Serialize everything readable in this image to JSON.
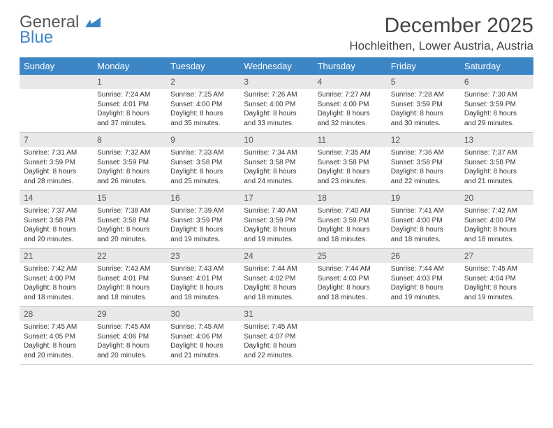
{
  "logo": {
    "general": "General",
    "blue": "Blue"
  },
  "title": {
    "month": "December 2025",
    "location": "Hochleithen, Lower Austria, Austria"
  },
  "colors": {
    "header_blue": "#3d86c6",
    "daynum_bg": "#e8e8e8"
  },
  "weekdays": [
    "Sunday",
    "Monday",
    "Tuesday",
    "Wednesday",
    "Thursday",
    "Friday",
    "Saturday"
  ],
  "weeks": [
    [
      {
        "day": "",
        "sunrise": "",
        "sunset": "",
        "daylight": ""
      },
      {
        "day": "1",
        "sunrise": "Sunrise: 7:24 AM",
        "sunset": "Sunset: 4:01 PM",
        "daylight": "Daylight: 8 hours and 37 minutes."
      },
      {
        "day": "2",
        "sunrise": "Sunrise: 7:25 AM",
        "sunset": "Sunset: 4:00 PM",
        "daylight": "Daylight: 8 hours and 35 minutes."
      },
      {
        "day": "3",
        "sunrise": "Sunrise: 7:26 AM",
        "sunset": "Sunset: 4:00 PM",
        "daylight": "Daylight: 8 hours and 33 minutes."
      },
      {
        "day": "4",
        "sunrise": "Sunrise: 7:27 AM",
        "sunset": "Sunset: 4:00 PM",
        "daylight": "Daylight: 8 hours and 32 minutes."
      },
      {
        "day": "5",
        "sunrise": "Sunrise: 7:28 AM",
        "sunset": "Sunset: 3:59 PM",
        "daylight": "Daylight: 8 hours and 30 minutes."
      },
      {
        "day": "6",
        "sunrise": "Sunrise: 7:30 AM",
        "sunset": "Sunset: 3:59 PM",
        "daylight": "Daylight: 8 hours and 29 minutes."
      }
    ],
    [
      {
        "day": "7",
        "sunrise": "Sunrise: 7:31 AM",
        "sunset": "Sunset: 3:59 PM",
        "daylight": "Daylight: 8 hours and 28 minutes."
      },
      {
        "day": "8",
        "sunrise": "Sunrise: 7:32 AM",
        "sunset": "Sunset: 3:59 PM",
        "daylight": "Daylight: 8 hours and 26 minutes."
      },
      {
        "day": "9",
        "sunrise": "Sunrise: 7:33 AM",
        "sunset": "Sunset: 3:58 PM",
        "daylight": "Daylight: 8 hours and 25 minutes."
      },
      {
        "day": "10",
        "sunrise": "Sunrise: 7:34 AM",
        "sunset": "Sunset: 3:58 PM",
        "daylight": "Daylight: 8 hours and 24 minutes."
      },
      {
        "day": "11",
        "sunrise": "Sunrise: 7:35 AM",
        "sunset": "Sunset: 3:58 PM",
        "daylight": "Daylight: 8 hours and 23 minutes."
      },
      {
        "day": "12",
        "sunrise": "Sunrise: 7:36 AM",
        "sunset": "Sunset: 3:58 PM",
        "daylight": "Daylight: 8 hours and 22 minutes."
      },
      {
        "day": "13",
        "sunrise": "Sunrise: 7:37 AM",
        "sunset": "Sunset: 3:58 PM",
        "daylight": "Daylight: 8 hours and 21 minutes."
      }
    ],
    [
      {
        "day": "14",
        "sunrise": "Sunrise: 7:37 AM",
        "sunset": "Sunset: 3:58 PM",
        "daylight": "Daylight: 8 hours and 20 minutes."
      },
      {
        "day": "15",
        "sunrise": "Sunrise: 7:38 AM",
        "sunset": "Sunset: 3:58 PM",
        "daylight": "Daylight: 8 hours and 20 minutes."
      },
      {
        "day": "16",
        "sunrise": "Sunrise: 7:39 AM",
        "sunset": "Sunset: 3:59 PM",
        "daylight": "Daylight: 8 hours and 19 minutes."
      },
      {
        "day": "17",
        "sunrise": "Sunrise: 7:40 AM",
        "sunset": "Sunset: 3:59 PM",
        "daylight": "Daylight: 8 hours and 19 minutes."
      },
      {
        "day": "18",
        "sunrise": "Sunrise: 7:40 AM",
        "sunset": "Sunset: 3:59 PM",
        "daylight": "Daylight: 8 hours and 18 minutes."
      },
      {
        "day": "19",
        "sunrise": "Sunrise: 7:41 AM",
        "sunset": "Sunset: 4:00 PM",
        "daylight": "Daylight: 8 hours and 18 minutes."
      },
      {
        "day": "20",
        "sunrise": "Sunrise: 7:42 AM",
        "sunset": "Sunset: 4:00 PM",
        "daylight": "Daylight: 8 hours and 18 minutes."
      }
    ],
    [
      {
        "day": "21",
        "sunrise": "Sunrise: 7:42 AM",
        "sunset": "Sunset: 4:00 PM",
        "daylight": "Daylight: 8 hours and 18 minutes."
      },
      {
        "day": "22",
        "sunrise": "Sunrise: 7:43 AM",
        "sunset": "Sunset: 4:01 PM",
        "daylight": "Daylight: 8 hours and 18 minutes."
      },
      {
        "day": "23",
        "sunrise": "Sunrise: 7:43 AM",
        "sunset": "Sunset: 4:01 PM",
        "daylight": "Daylight: 8 hours and 18 minutes."
      },
      {
        "day": "24",
        "sunrise": "Sunrise: 7:44 AM",
        "sunset": "Sunset: 4:02 PM",
        "daylight": "Daylight: 8 hours and 18 minutes."
      },
      {
        "day": "25",
        "sunrise": "Sunrise: 7:44 AM",
        "sunset": "Sunset: 4:03 PM",
        "daylight": "Daylight: 8 hours and 18 minutes."
      },
      {
        "day": "26",
        "sunrise": "Sunrise: 7:44 AM",
        "sunset": "Sunset: 4:03 PM",
        "daylight": "Daylight: 8 hours and 19 minutes."
      },
      {
        "day": "27",
        "sunrise": "Sunrise: 7:45 AM",
        "sunset": "Sunset: 4:04 PM",
        "daylight": "Daylight: 8 hours and 19 minutes."
      }
    ],
    [
      {
        "day": "28",
        "sunrise": "Sunrise: 7:45 AM",
        "sunset": "Sunset: 4:05 PM",
        "daylight": "Daylight: 8 hours and 20 minutes."
      },
      {
        "day": "29",
        "sunrise": "Sunrise: 7:45 AM",
        "sunset": "Sunset: 4:06 PM",
        "daylight": "Daylight: 8 hours and 20 minutes."
      },
      {
        "day": "30",
        "sunrise": "Sunrise: 7:45 AM",
        "sunset": "Sunset: 4:06 PM",
        "daylight": "Daylight: 8 hours and 21 minutes."
      },
      {
        "day": "31",
        "sunrise": "Sunrise: 7:45 AM",
        "sunset": "Sunset: 4:07 PM",
        "daylight": "Daylight: 8 hours and 22 minutes."
      },
      {
        "day": "",
        "sunrise": "",
        "sunset": "",
        "daylight": ""
      },
      {
        "day": "",
        "sunrise": "",
        "sunset": "",
        "daylight": ""
      },
      {
        "day": "",
        "sunrise": "",
        "sunset": "",
        "daylight": ""
      }
    ]
  ]
}
